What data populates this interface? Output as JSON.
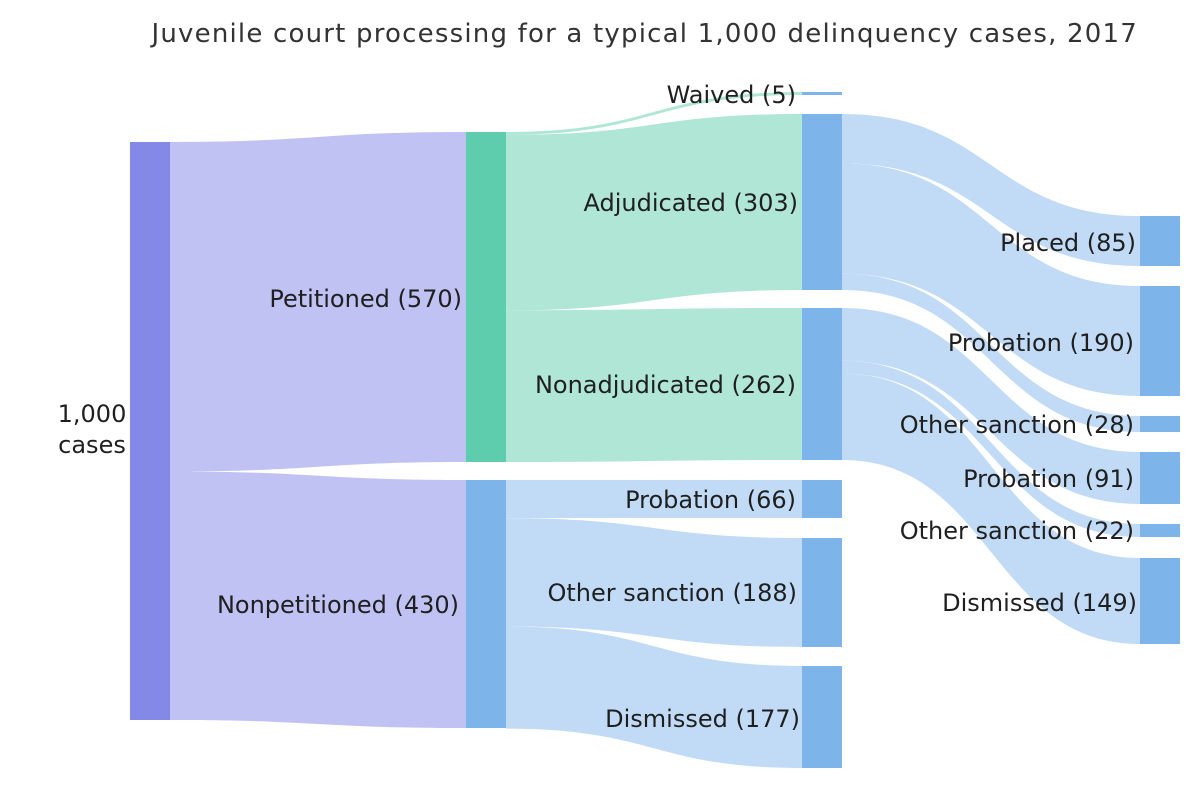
{
  "title": "Juvenile court processing for a typical 1,000 delinquency cases, 2017",
  "colors": {
    "root_node": "#8489e8",
    "petitioned_node": "#5ecdad",
    "blue_node": "#7db4ea",
    "purple_link": "#c0c2f3",
    "green_link": "#b0e6d6",
    "blue_link": "#c1dbf6",
    "label": "#1f1f1f",
    "title": "#333333"
  },
  "nodes": [
    {
      "id": "total",
      "label_lines": [
        "1,000",
        "cases"
      ],
      "value": 1000
    },
    {
      "id": "petitioned",
      "label": "Petitioned (570)",
      "value": 570
    },
    {
      "id": "nonpetitioned",
      "label": "Nonpetitioned (430)",
      "value": 430
    },
    {
      "id": "waived",
      "label": "Waived (5)",
      "value": 5
    },
    {
      "id": "adjudicated",
      "label": "Adjudicated (303)",
      "value": 303
    },
    {
      "id": "nonadjudicated",
      "label": "Nonadjudicated (262)",
      "value": 262
    },
    {
      "id": "np_probation",
      "label": "Probation (66)",
      "value": 66
    },
    {
      "id": "np_other",
      "label": "Other sanction (188)",
      "value": 188
    },
    {
      "id": "np_dismissed",
      "label": "Dismissed (177)",
      "value": 177
    },
    {
      "id": "placed",
      "label": "Placed (85)",
      "value": 85
    },
    {
      "id": "adj_probation",
      "label": "Probation (190)",
      "value": 190
    },
    {
      "id": "adj_other",
      "label": "Other sanction (28)",
      "value": 28
    },
    {
      "id": "nonadj_probation",
      "label": "Probation (91)",
      "value": 91
    },
    {
      "id": "nonadj_other",
      "label": "Other sanction (22)",
      "value": 22
    },
    {
      "id": "nonadj_dismissed",
      "label": "Dismissed (149)",
      "value": 149
    }
  ],
  "links": [
    {
      "source": "total",
      "target": "petitioned",
      "value": 570
    },
    {
      "source": "total",
      "target": "nonpetitioned",
      "value": 430
    },
    {
      "source": "petitioned",
      "target": "waived",
      "value": 5
    },
    {
      "source": "petitioned",
      "target": "adjudicated",
      "value": 303
    },
    {
      "source": "petitioned",
      "target": "nonadjudicated",
      "value": 262
    },
    {
      "source": "nonpetitioned",
      "target": "np_probation",
      "value": 66
    },
    {
      "source": "nonpetitioned",
      "target": "np_other",
      "value": 188
    },
    {
      "source": "nonpetitioned",
      "target": "np_dismissed",
      "value": 177
    },
    {
      "source": "adjudicated",
      "target": "placed",
      "value": 85
    },
    {
      "source": "adjudicated",
      "target": "adj_probation",
      "value": 190
    },
    {
      "source": "adjudicated",
      "target": "adj_other",
      "value": 28
    },
    {
      "source": "nonadjudicated",
      "target": "nonadj_probation",
      "value": 91
    },
    {
      "source": "nonadjudicated",
      "target": "nonadj_other",
      "value": 22
    },
    {
      "source": "nonadjudicated",
      "target": "nonadj_dismissed",
      "value": 149
    }
  ]
}
